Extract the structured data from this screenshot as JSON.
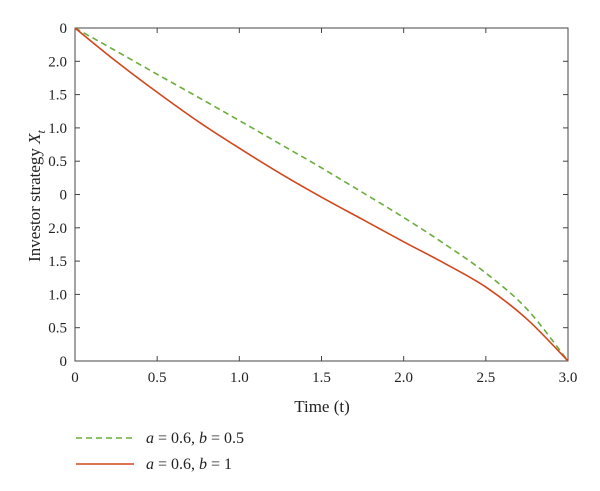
{
  "chart_data": {
    "type": "line",
    "xlabel": "Time (t)",
    "ylabel": {
      "main": "Investor strategy ",
      "var": "X",
      "sub": "t"
    },
    "xlim": [
      0,
      3.0
    ],
    "ylim": [
      0,
      10
    ],
    "x_ticks": [
      {
        "value": 0,
        "label": "0"
      },
      {
        "value": 0.5,
        "label": "0.5"
      },
      {
        "value": 1.0,
        "label": "1.0"
      },
      {
        "value": 1.5,
        "label": "1.5"
      },
      {
        "value": 2.0,
        "label": "2.0"
      },
      {
        "value": 2.5,
        "label": "2.5"
      },
      {
        "value": 3.0,
        "label": "3.0"
      }
    ],
    "y_ticks": [
      {
        "value": 0,
        "label": "0"
      },
      {
        "value": 1,
        "label": "0.5"
      },
      {
        "value": 2,
        "label": "1.0"
      },
      {
        "value": 3,
        "label": "1.5"
      },
      {
        "value": 4,
        "label": "2.0"
      },
      {
        "value": 5,
        "label": "0"
      },
      {
        "value": 6,
        "label": "0.5"
      },
      {
        "value": 7,
        "label": "1.0"
      },
      {
        "value": 8,
        "label": "1.5"
      },
      {
        "value": 9,
        "label": "2.0"
      },
      {
        "value": 10,
        "label": "0"
      }
    ],
    "grid": false,
    "legend_position": "bottom-left, below the plot",
    "series": [
      {
        "label_parts": {
          "a": "a",
          "a_val": " = 0.6, ",
          "b": "b",
          "b_val": " = 0.5"
        },
        "color": "#6aad3c",
        "dash": "dashed",
        "x": [
          0,
          0.25,
          0.5,
          0.75,
          1.0,
          1.25,
          1.5,
          1.75,
          2.0,
          2.25,
          2.5,
          2.75,
          3.0
        ],
        "y": [
          10,
          9.31,
          8.61,
          7.92,
          7.22,
          6.51,
          5.8,
          5.06,
          4.31,
          3.51,
          2.64,
          1.56,
          0
        ]
      },
      {
        "label_parts": {
          "a": "a",
          "a_val": " = 0.6, ",
          "b": "b",
          "b_val": " = 1"
        },
        "color": "#d2461b",
        "dash": "solid",
        "x": [
          0,
          0.25,
          0.5,
          0.75,
          1.0,
          1.25,
          1.5,
          1.75,
          2.0,
          2.25,
          2.5,
          2.75,
          3.0
        ],
        "y": [
          10,
          9.0,
          8.07,
          7.19,
          6.39,
          5.63,
          4.92,
          4.25,
          3.58,
          2.93,
          2.22,
          1.26,
          0
        ]
      }
    ]
  }
}
